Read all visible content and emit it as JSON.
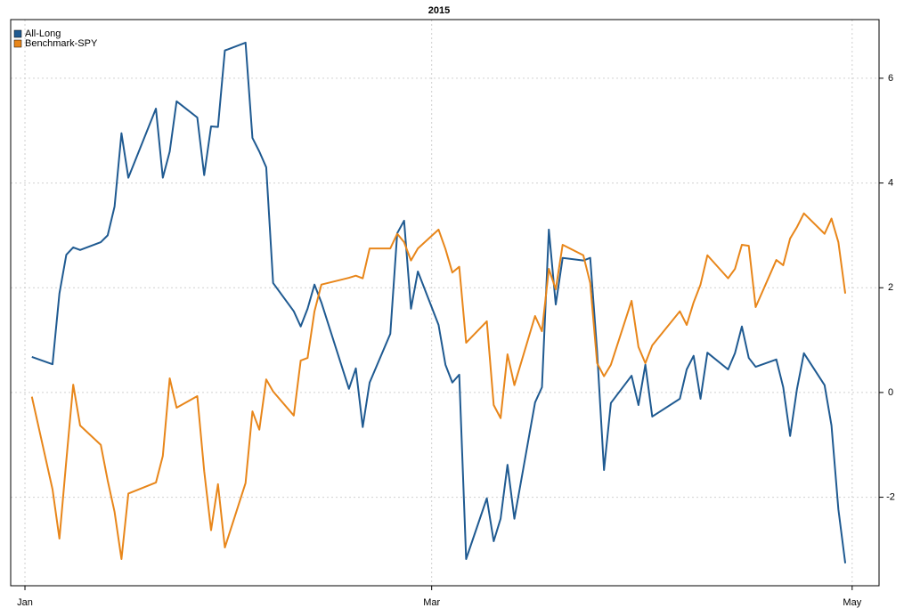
{
  "chart_data": {
    "type": "line",
    "title": "2015",
    "x": [
      1,
      4,
      5,
      6,
      7,
      8,
      11,
      12,
      13,
      14,
      15,
      19,
      20,
      21,
      22,
      25,
      26,
      27,
      28,
      29,
      32,
      33,
      34,
      35,
      36,
      39,
      40,
      41,
      42,
      43,
      47,
      48,
      49,
      50,
      53,
      54,
      55,
      56,
      57,
      60,
      61,
      62,
      63,
      64,
      67,
      68,
      69,
      70,
      71,
      74,
      75,
      76,
      77,
      78,
      81,
      82,
      83,
      84,
      85,
      88,
      89,
      90,
      91,
      95,
      96,
      97,
      98,
      99,
      102,
      103,
      104,
      105,
      106,
      109,
      110,
      111,
      112,
      113,
      116,
      117,
      118,
      119
    ],
    "series": [
      {
        "name": "All-Long",
        "color": "#1f5a91",
        "values": [
          0.68,
          0.54,
          1.89,
          2.63,
          2.77,
          2.72,
          2.87,
          3.0,
          3.55,
          4.95,
          4.1,
          5.42,
          4.1,
          4.6,
          5.56,
          5.25,
          4.15,
          5.08,
          5.07,
          6.53,
          6.68,
          4.86,
          4.6,
          4.3,
          2.09,
          1.55,
          1.26,
          1.6,
          2.06,
          1.72,
          0.07,
          0.46,
          -0.66,
          0.19,
          1.12,
          3.04,
          3.28,
          1.6,
          2.31,
          1.29,
          0.53,
          0.19,
          0.34,
          -3.18,
          -2.02,
          -2.84,
          -2.41,
          -1.38,
          -2.41,
          -0.19,
          0.1,
          3.11,
          1.68,
          2.57,
          2.52,
          2.57,
          0.78,
          -1.48,
          -0.2,
          0.32,
          -0.24,
          0.53,
          -0.46,
          -0.12,
          0.44,
          0.7,
          -0.12,
          0.76,
          0.44,
          0.75,
          1.26,
          0.66,
          0.49,
          0.63,
          0.1,
          -0.83,
          0.07,
          0.75,
          0.14,
          -0.63,
          -2.23,
          -3.26
        ]
      },
      {
        "name": "Benchmark-SPY",
        "color": "#e8861a",
        "values": [
          -0.08,
          -1.85,
          -2.79,
          -1.3,
          0.15,
          -0.63,
          -1.0,
          -1.68,
          -2.28,
          -3.18,
          -1.93,
          -1.72,
          -1.21,
          0.27,
          -0.29,
          -0.07,
          -1.5,
          -2.63,
          -1.75,
          -2.96,
          -1.73,
          -0.36,
          -0.71,
          0.25,
          0.02,
          -0.44,
          0.61,
          0.66,
          1.55,
          2.06,
          2.19,
          2.23,
          2.18,
          2.75,
          2.75,
          3.03,
          2.87,
          2.52,
          2.75,
          3.11,
          2.74,
          2.29,
          2.4,
          0.95,
          1.36,
          -0.24,
          -0.49,
          0.73,
          0.14,
          1.46,
          1.17,
          2.36,
          1.97,
          2.82,
          2.62,
          2.09,
          0.56,
          0.31,
          0.53,
          1.75,
          0.87,
          0.56,
          0.9,
          1.55,
          1.29,
          1.72,
          2.06,
          2.62,
          2.18,
          2.36,
          2.82,
          2.8,
          1.63,
          2.53,
          2.43,
          2.94,
          3.16,
          3.42,
          3.03,
          3.32,
          2.87,
          1.89
        ]
      }
    ],
    "xlim": [
      -2.07,
      123.9
    ],
    "xticks": [
      {
        "value": 0,
        "label": "Jan"
      },
      {
        "value": 59,
        "label": "Mar"
      },
      {
        "value": 120,
        "label": "May"
      }
    ],
    "ylim": [
      -3.69,
      7.12
    ],
    "yticks": [
      -2,
      0,
      2,
      4,
      6
    ],
    "grid": true,
    "legend": "top-left"
  }
}
